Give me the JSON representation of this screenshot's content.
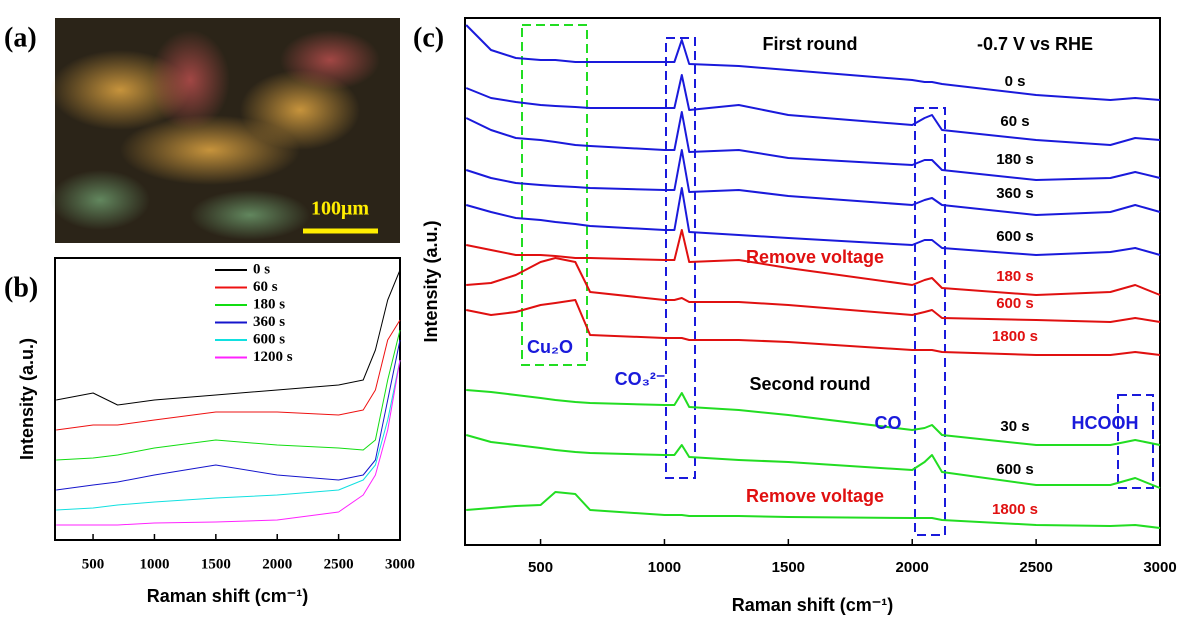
{
  "image": {
    "panel_label": "(a)",
    "scale_label": "100μm"
  },
  "chart_data": [
    {
      "type": "line",
      "panel_label": "(b)",
      "x_label": "Raman shift (cm⁻¹)",
      "y_label": "Intensity (a.u.)",
      "x": [
        200,
        500,
        700,
        1000,
        1500,
        2000,
        2500,
        2700,
        2800,
        2900,
        3000
      ],
      "xlim": [
        190,
        3000
      ],
      "xticks": [
        500,
        1000,
        1500,
        2000,
        2500,
        3000
      ],
      "ylim": [
        0,
        282
      ],
      "legend": "top-right",
      "series": [
        {
          "name": "0 s",
          "color": "#000000",
          "values": [
            140,
            147,
            135,
            140,
            145,
            150,
            155,
            160,
            190,
            240,
            270
          ]
        },
        {
          "name": "60 s",
          "color": "#ee1111",
          "values": [
            110,
            115,
            115,
            120,
            128,
            128,
            125,
            130,
            150,
            200,
            220
          ]
        },
        {
          "name": "180 s",
          "color": "#11dd11",
          "values": [
            80,
            82,
            85,
            92,
            100,
            95,
            92,
            90,
            100,
            160,
            210
          ]
        },
        {
          "name": "360 s",
          "color": "#1515cc",
          "values": [
            50,
            55,
            58,
            65,
            75,
            65,
            60,
            65,
            80,
            140,
            200
          ]
        },
        {
          "name": "600 s",
          "color": "#11e0e0",
          "values": [
            30,
            32,
            35,
            38,
            42,
            45,
            50,
            60,
            75,
            120,
            180
          ]
        },
        {
          "name": "1200 s",
          "color": "#ff22ff",
          "values": [
            15,
            15,
            15,
            17,
            18,
            20,
            28,
            45,
            65,
            110,
            180
          ]
        }
      ]
    },
    {
      "type": "line",
      "panel_label": "(c)",
      "x_label": "Raman shift (cm⁻¹)",
      "y_label": "Intensity (a.u.)",
      "x": [
        200,
        300,
        400,
        500,
        560,
        640,
        700,
        1000,
        1040,
        1070,
        1100,
        1300,
        1500,
        2000,
        2050,
        2080,
        2120,
        2500,
        2800,
        2900,
        3000
      ],
      "xlim": [
        195,
        3000
      ],
      "xticks": [
        500,
        1000,
        1500,
        2000,
        2500,
        3000
      ],
      "ylim": [
        0,
        527
      ],
      "annotations": [
        "First round",
        "-0.7 V vs RHE",
        "Remove voltage",
        "Remove voltage",
        "Second round",
        "Cu₂O",
        "CO₃²⁻",
        "CO",
        "HCOOH"
      ],
      "series": [
        {
          "name": "0 s",
          "color": "#1a1adb",
          "label_color": "#000000",
          "values": [
            520,
            495,
            487,
            485,
            485,
            483,
            483,
            483,
            483,
            505,
            481,
            479,
            475,
            465,
            463,
            463,
            461,
            450,
            445,
            447,
            445
          ]
        },
        {
          "name": "60 s",
          "color": "#1a1adb",
          "label_color": "#000000",
          "values": [
            457,
            447,
            443,
            440,
            439,
            438,
            437,
            437,
            437,
            470,
            435,
            440,
            430,
            420,
            427,
            430,
            415,
            405,
            400,
            407,
            405
          ]
        },
        {
          "name": "180 s",
          "color": "#1a1adb",
          "label_color": "#000000",
          "values": [
            427,
            415,
            407,
            405,
            403,
            400,
            399,
            395,
            395,
            433,
            393,
            395,
            387,
            380,
            385,
            385,
            375,
            365,
            367,
            373,
            367
          ]
        },
        {
          "name": "360 s",
          "color": "#1a1adb",
          "label_color": "#000000",
          "values": [
            375,
            367,
            362,
            360,
            359,
            358,
            357,
            355,
            355,
            395,
            353,
            355,
            349,
            340,
            345,
            347,
            340,
            330,
            333,
            340,
            333
          ]
        },
        {
          "name": "600 s",
          "color": "#1a1adb",
          "label_color": "#000000",
          "values": [
            340,
            333,
            327,
            325,
            323,
            321,
            319,
            315,
            315,
            357,
            313,
            310,
            307,
            300,
            305,
            305,
            297,
            290,
            293,
            297,
            290
          ]
        },
        {
          "name": "180 s",
          "color": "#e01010",
          "label_color": "#e01010",
          "values": [
            300,
            295,
            290,
            290,
            289,
            287,
            287,
            285,
            285,
            315,
            283,
            285,
            277,
            260,
            265,
            267,
            257,
            250,
            253,
            260,
            250
          ]
        },
        {
          "name": "600 s",
          "color": "#e01010",
          "label_color": "#e01010",
          "values": [
            260,
            262,
            270,
            283,
            287,
            283,
            253,
            245,
            245,
            247,
            243,
            243,
            240,
            230,
            233,
            235,
            227,
            225,
            223,
            227,
            223
          ]
        },
        {
          "name": "1800 s",
          "color": "#e01010",
          "label_color": "#e01010",
          "values": [
            235,
            230,
            233,
            240,
            242,
            245,
            210,
            207,
            207,
            207,
            205,
            205,
            203,
            195,
            195,
            195,
            193,
            190,
            190,
            193,
            190
          ]
        },
        {
          "name": "30 s",
          "color": "#22dd22",
          "label_color": "#000000",
          "values": [
            155,
            153,
            150,
            147,
            145,
            143,
            142,
            140,
            140,
            152,
            138,
            135,
            130,
            115,
            117,
            120,
            110,
            100,
            100,
            105,
            100
          ]
        },
        {
          "name": "600 s",
          "color": "#22dd22",
          "label_color": "#000000",
          "values": [
            110,
            103,
            100,
            97,
            95,
            93,
            92,
            90,
            90,
            100,
            88,
            85,
            83,
            75,
            83,
            90,
            73,
            60,
            60,
            67,
            57
          ]
        },
        {
          "name": "1800 s",
          "color": "#22dd22",
          "label_color": "#e01010",
          "values": [
            35,
            37,
            39,
            40,
            53,
            51,
            35,
            30,
            30,
            30,
            29,
            29,
            28,
            27,
            27,
            27,
            25,
            20,
            19,
            20,
            17
          ]
        }
      ]
    }
  ]
}
